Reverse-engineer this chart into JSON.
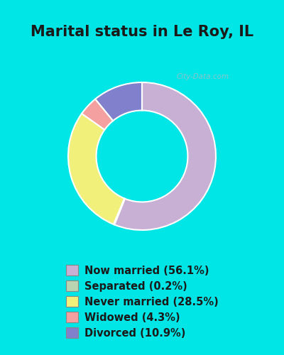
{
  "title": "Marital status in Le Roy, IL",
  "title_fontsize": 15,
  "title_fontweight": "bold",
  "slices": [
    {
      "label": "Now married (56.1%)",
      "value": 56.1,
      "color": "#c8afd4"
    },
    {
      "label": "Separated (0.2%)",
      "value": 0.2,
      "color": "#b8d4b0"
    },
    {
      "label": "Never married (28.5%)",
      "value": 28.5,
      "color": "#f0f07a"
    },
    {
      "label": "Widowed (4.3%)",
      "value": 4.3,
      "color": "#f4a0a0"
    },
    {
      "label": "Divorced (10.9%)",
      "value": 10.9,
      "color": "#8080cc"
    }
  ],
  "donut_width": 0.38,
  "start_angle": 90,
  "bg_outer": "#00e5e5",
  "bg_inner": "#d8f0d8",
  "chart_bg_top": "#d8eed8",
  "chart_bg_bottom": "#c8e8c8",
  "legend_fontsize": 10.5,
  "watermark": "City-Data.com"
}
